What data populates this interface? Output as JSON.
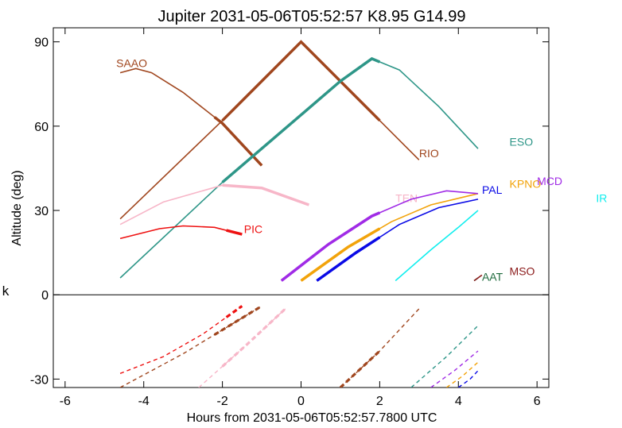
{
  "chart_data": {
    "type": "line",
    "title": "Jupiter 2031-05-06T05:52:57  K8.95  G14.99",
    "xlabel": "Hours from 2031-05-06T05:52:57.7800 UTC",
    "ylabel": "Altitude (deg)",
    "side_label": "k",
    "xlim": [
      -6.3,
      6.3
    ],
    "ylim": [
      -33,
      95
    ],
    "x_ticks": [
      -6,
      -4,
      -2,
      0,
      2,
      4,
      6
    ],
    "y_ticks": [
      90,
      60,
      30,
      0,
      -30
    ],
    "series": [
      {
        "name": "SAAO",
        "color": "#a0461e",
        "label_at": [
          -4.7,
          81
        ],
        "points": [
          [
            -4.6,
            79
          ],
          [
            -4.2,
            80.5
          ],
          [
            -3.8,
            79
          ],
          [
            -3.0,
            72
          ],
          [
            -2.0,
            61
          ],
          [
            -1.0,
            46
          ]
        ],
        "thick": [
          [
            -2.2,
            -1.0
          ]
        ]
      },
      {
        "name": "RIO",
        "color": "#a0461e",
        "label_at": [
          3.0,
          49
        ],
        "points": [
          [
            -4.6,
            27
          ],
          [
            -2.0,
            62
          ],
          [
            0.0,
            90
          ],
          [
            2.0,
            62
          ],
          [
            3.0,
            48
          ]
        ],
        "thick": [
          [
            -2.0,
            2.0
          ]
        ]
      },
      {
        "name": "ESO",
        "color": "#2e9688",
        "label_at": [
          5.3,
          53
        ],
        "points": [
          [
            -4.6,
            6
          ],
          [
            -2.0,
            40
          ],
          [
            0.0,
            64
          ],
          [
            1.0,
            76
          ],
          [
            1.8,
            84
          ],
          [
            2.5,
            80
          ],
          [
            3.5,
            67
          ],
          [
            4.5,
            52
          ]
        ],
        "thick": [
          [
            -2.0,
            2.0
          ]
        ]
      },
      {
        "name": "TEN",
        "color": "#f7b6c8",
        "label_at": [
          2.4,
          33
        ],
        "points": [
          [
            -4.6,
            25
          ],
          [
            -3.5,
            33
          ],
          [
            -2.0,
            39
          ],
          [
            -1.0,
            38
          ],
          [
            0.2,
            32
          ]
        ],
        "thick": [
          [
            -2.0,
            0.2
          ]
        ]
      },
      {
        "name": "PIC",
        "color": "#ee1111",
        "label_at": [
          -1.45,
          22
        ],
        "points": [
          [
            -4.6,
            20
          ],
          [
            -3.6,
            23.5
          ],
          [
            -3.0,
            24.5
          ],
          [
            -2.2,
            24
          ],
          [
            -1.5,
            21.5
          ]
        ],
        "thick": [
          [
            -1.9,
            -1.5
          ]
        ]
      },
      {
        "name": "PAL",
        "color": "#0a0ae6",
        "label_at": [
          4.6,
          36
        ],
        "points": [
          [
            0.4,
            5
          ],
          [
            1.4,
            15
          ],
          [
            2.5,
            25
          ],
          [
            3.5,
            31
          ],
          [
            4.5,
            34
          ]
        ],
        "thick": [
          [
            0.4,
            2.0
          ]
        ]
      },
      {
        "name": "KPNO",
        "color": "#f2a30a",
        "label_at": [
          5.3,
          38
        ],
        "points": [
          [
            0.0,
            5
          ],
          [
            1.2,
            17
          ],
          [
            2.3,
            26
          ],
          [
            3.3,
            32
          ],
          [
            4.5,
            36
          ]
        ],
        "thick": [
          [
            0.0,
            2.0
          ]
        ]
      },
      {
        "name": "MCD",
        "color": "#a02be6",
        "label_at": [
          6.0,
          39
        ],
        "points": [
          [
            -0.5,
            5
          ],
          [
            0.7,
            18
          ],
          [
            1.8,
            28
          ],
          [
            2.8,
            34
          ],
          [
            3.7,
            37
          ],
          [
            4.5,
            36
          ]
        ],
        "thick": [
          [
            -0.5,
            2.0
          ]
        ]
      },
      {
        "name": "IR",
        "color": "#11eeee",
        "label_at": [
          7.5,
          33
        ],
        "points": [
          [
            2.4,
            5
          ],
          [
            3.3,
            16
          ],
          [
            4.0,
            24
          ],
          [
            4.5,
            30
          ]
        ],
        "thick": []
      },
      {
        "name": "AAT",
        "color": "#1f6b3e",
        "label_at": [
          4.6,
          5
        ],
        "points": [
          [
            4.4,
            5
          ],
          [
            4.5,
            6
          ]
        ],
        "thick": []
      },
      {
        "name": "MSO",
        "color": "#8b1a1a",
        "label_at": [
          5.3,
          7
        ],
        "points": [
          [
            4.4,
            5
          ],
          [
            4.6,
            7
          ]
        ],
        "thick": []
      }
    ],
    "below_horizon": [
      {
        "color": "#ee1111",
        "points": [
          [
            -4.6,
            -28
          ],
          [
            -3.5,
            -22
          ],
          [
            -2.5,
            -14
          ],
          [
            -1.5,
            -4
          ]
        ],
        "thick": [
          [
            -1.9,
            -1.5
          ]
        ]
      },
      {
        "color": "#a0461e",
        "points": [
          [
            -4.6,
            -33
          ],
          [
            -3.0,
            -21
          ],
          [
            -1.0,
            -4
          ]
        ],
        "thick": [
          [
            -2.2,
            -1.0
          ]
        ]
      },
      {
        "color": "#f7b6c8",
        "points": [
          [
            -2.6,
            -33
          ],
          [
            -1.4,
            -18
          ],
          [
            -0.4,
            -5
          ]
        ],
        "thick": [
          [
            -2.0,
            -0.4
          ]
        ]
      },
      {
        "color": "#a0461e",
        "points": [
          [
            1.0,
            -33
          ],
          [
            2.0,
            -20
          ],
          [
            3.0,
            -5
          ]
        ],
        "thick": [
          [
            1.0,
            2.0
          ]
        ]
      },
      {
        "color": "#2e9688",
        "points": [
          [
            2.8,
            -33
          ],
          [
            3.7,
            -22
          ],
          [
            4.5,
            -11
          ]
        ],
        "thick": []
      },
      {
        "color": "#a02be6",
        "points": [
          [
            3.3,
            -33
          ],
          [
            3.9,
            -27
          ],
          [
            4.5,
            -20
          ]
        ],
        "thick": []
      },
      {
        "color": "#f2a30a",
        "points": [
          [
            3.7,
            -33
          ],
          [
            4.1,
            -29
          ],
          [
            4.5,
            -24
          ]
        ],
        "thick": []
      },
      {
        "color": "#0a0ae6",
        "points": [
          [
            4.0,
            -33
          ],
          [
            4.3,
            -30
          ],
          [
            4.5,
            -27
          ]
        ],
        "thick": []
      }
    ]
  }
}
